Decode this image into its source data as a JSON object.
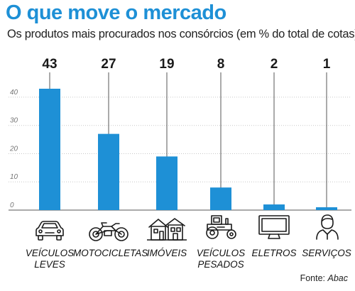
{
  "title": "O que move o mercado",
  "subtitle": "Os produtos mais procurados nos consórcios (em % do total de cotas)",
  "source_prefix": "Fonte: ",
  "source_name": "Abac",
  "chart_data": {
    "type": "bar",
    "categories": [
      "VEÍCULOS\nLEVES",
      "MOTOCICLETAS",
      "IMÓVEIS",
      "VEÍCULOS\nPESADOS",
      "ELETROS",
      "SERVIÇOS"
    ],
    "values": [
      43,
      27,
      19,
      8,
      2,
      1
    ],
    "value_labels": [
      "43",
      "27",
      "19",
      "8",
      "2",
      "1"
    ],
    "y_ticks": [
      "0",
      "10",
      "20",
      "30",
      "40"
    ],
    "ylim": [
      0,
      43
    ],
    "grid": true,
    "bar_color": "#1e90d6",
    "icons": [
      "car-icon",
      "motorcycle-icon",
      "house-icon",
      "tractor-icon",
      "monitor-icon",
      "person-icon"
    ]
  }
}
